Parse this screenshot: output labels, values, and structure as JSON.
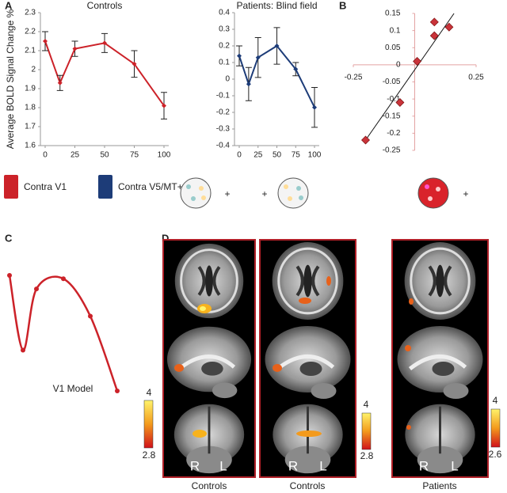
{
  "panel_letters": [
    "A",
    "B",
    "C",
    "D"
  ],
  "chart_data": [
    {
      "type": "line",
      "title": "Controls",
      "y_label": "Average BOLD Signal Change %",
      "x": [
        0,
        12.5,
        25,
        50,
        75,
        100
      ],
      "xlim": [
        0,
        100
      ],
      "xticks": [
        0,
        25,
        50,
        75,
        100
      ],
      "ylim": [
        1.6,
        2.3
      ],
      "yticks": [
        1.6,
        1.7,
        1.8,
        1.9,
        2,
        2.1,
        2.2,
        2.3
      ],
      "series": [
        {
          "name": "Contra V1",
          "color": "#cc2229",
          "values": [
            2.15,
            1.93,
            2.11,
            2.14,
            2.03,
            1.81
          ],
          "errors": [
            0.05,
            0.04,
            0.04,
            0.05,
            0.07,
            0.07
          ]
        }
      ]
    },
    {
      "type": "line",
      "title": "Patients: Blind field",
      "x": [
        0,
        12.5,
        25,
        50,
        75,
        100
      ],
      "xlim": [
        0,
        100
      ],
      "xticks": [
        0,
        25,
        50,
        75,
        100
      ],
      "ylim": [
        -0.4,
        0.4
      ],
      "yticks": [
        -0.4,
        -0.3,
        -0.2,
        -0.1,
        0,
        0.1,
        0.2,
        0.3,
        0.4
      ],
      "series": [
        {
          "name": "Contra V5/MT+",
          "color": "#1d3c78",
          "values": [
            0.14,
            -0.03,
            0.13,
            0.2,
            0.06,
            -0.17
          ],
          "errors": [
            0.06,
            0.1,
            0.12,
            0.11,
            0.04,
            0.12
          ]
        }
      ]
    },
    {
      "type": "scatter",
      "x": [
        -0.2,
        -0.06,
        0.01,
        0.08,
        0.08,
        0.14
      ],
      "values": [
        -0.22,
        -0.11,
        0.01,
        0.085,
        0.125,
        0.11
      ],
      "color": "#c9333a",
      "fit": {
        "x": [
          -0.2,
          0.16
        ],
        "y": [
          -0.22,
          0.15
        ]
      },
      "xlim": [
        -0.25,
        0.25
      ],
      "xticks": [
        -0.25,
        0.25
      ],
      "ylim": [
        -0.25,
        0.15
      ],
      "yticks": [
        -0.25,
        -0.2,
        -0.15,
        -0.1,
        -0.05,
        0,
        0.05,
        0.1,
        0.15
      ]
    },
    {
      "type": "curve",
      "title": "V1 Model",
      "color": "#cc2229",
      "x": [
        0,
        12.5,
        25,
        50,
        75,
        100
      ],
      "values": [
        2.15,
        1.93,
        2.11,
        2.14,
        2.03,
        1.81
      ]
    }
  ],
  "plus_sign": "+",
  "brain_panels": [
    {
      "label": "Controls",
      "colorbar": [
        4,
        2.8
      ]
    },
    {
      "label": "Controls",
      "colorbar": [
        4,
        2.8
      ]
    },
    {
      "label": "Patients",
      "colorbar": [
        4,
        2.6
      ]
    }
  ],
  "orientation_labels": [
    "R",
    "L"
  ]
}
